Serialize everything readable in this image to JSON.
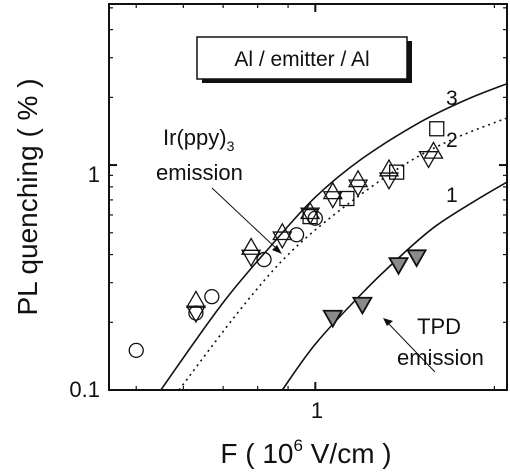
{
  "chart_data": {
    "type": "scatter",
    "title": "",
    "xlabel": {
      "prefix": "F  ( 10",
      "sup": "6",
      "suffix": " V/cm )"
    },
    "ylabel": "PL quenching   ( % )",
    "xscale": "log",
    "yscale": "log",
    "xlim": [
      0.45,
      2.1
    ],
    "ylim": [
      0.1,
      5.2
    ],
    "x_ticks": [
      {
        "value": 1,
        "label": "1"
      }
    ],
    "y_ticks": [
      {
        "value": 1,
        "label": "1"
      },
      {
        "value": 0.1,
        "label": "0.1"
      }
    ],
    "legend_box": "Al / emitter / Al",
    "annotations": [
      {
        "text": "Ir(ppy)",
        "sub": "3",
        "line2": "emission"
      },
      {
        "text": "TPD",
        "line2": "emission"
      }
    ],
    "curves": [
      {
        "label": "3",
        "style": "solid",
        "points": [
          [
            0.55,
            0.1
          ],
          [
            0.7,
            0.245
          ],
          [
            0.85,
            0.45
          ],
          [
            1.0,
            0.72
          ],
          [
            1.2,
            1.07
          ],
          [
            1.5,
            1.55
          ],
          [
            1.8,
            1.96
          ],
          [
            2.1,
            2.3
          ]
        ]
      },
      {
        "label": "2",
        "style": "dotted",
        "points": [
          [
            0.59,
            0.1
          ],
          [
            0.75,
            0.23
          ],
          [
            0.9,
            0.4
          ],
          [
            1.1,
            0.63
          ],
          [
            1.4,
            0.99
          ],
          [
            1.7,
            1.3
          ],
          [
            2.1,
            1.62
          ]
        ]
      },
      {
        "label": "1",
        "style": "solid",
        "points": [
          [
            0.88,
            0.1
          ],
          [
            1.0,
            0.16
          ],
          [
            1.2,
            0.27
          ],
          [
            1.4,
            0.4
          ],
          [
            1.6,
            0.54
          ],
          [
            1.9,
            0.72
          ],
          [
            2.1,
            0.84
          ]
        ]
      }
    ],
    "series": [
      {
        "marker": "circle-open",
        "points": [
          [
            0.5,
            0.15
          ],
          [
            0.63,
            0.22
          ],
          [
            0.67,
            0.26
          ],
          [
            0.82,
            0.38
          ],
          [
            0.93,
            0.49
          ],
          [
            1.0,
            0.58
          ]
        ]
      },
      {
        "marker": "triangle-up-open",
        "points": [
          [
            0.63,
            0.25
          ],
          [
            0.78,
            0.43
          ],
          [
            0.88,
            0.5
          ],
          [
            0.98,
            0.62
          ],
          [
            1.07,
            0.76
          ],
          [
            1.18,
            0.86
          ],
          [
            1.33,
            0.96
          ],
          [
            1.58,
            1.15
          ]
        ]
      },
      {
        "marker": "triangle-down-open",
        "points": [
          [
            0.63,
            0.22
          ],
          [
            0.78,
            0.39
          ],
          [
            0.88,
            0.47
          ],
          [
            0.98,
            0.6
          ],
          [
            1.07,
            0.71
          ],
          [
            1.18,
            0.8
          ],
          [
            1.33,
            0.86
          ],
          [
            1.55,
            1.07
          ]
        ]
      },
      {
        "marker": "square-open",
        "points": [
          [
            0.98,
            0.59
          ],
          [
            1.13,
            0.71
          ],
          [
            1.37,
            0.93
          ],
          [
            1.6,
            1.45
          ]
        ]
      },
      {
        "marker": "triangle-down-filled",
        "points": [
          [
            1.07,
            0.21
          ],
          [
            1.2,
            0.24
          ],
          [
            1.38,
            0.36
          ],
          [
            1.48,
            0.39
          ]
        ]
      }
    ]
  }
}
